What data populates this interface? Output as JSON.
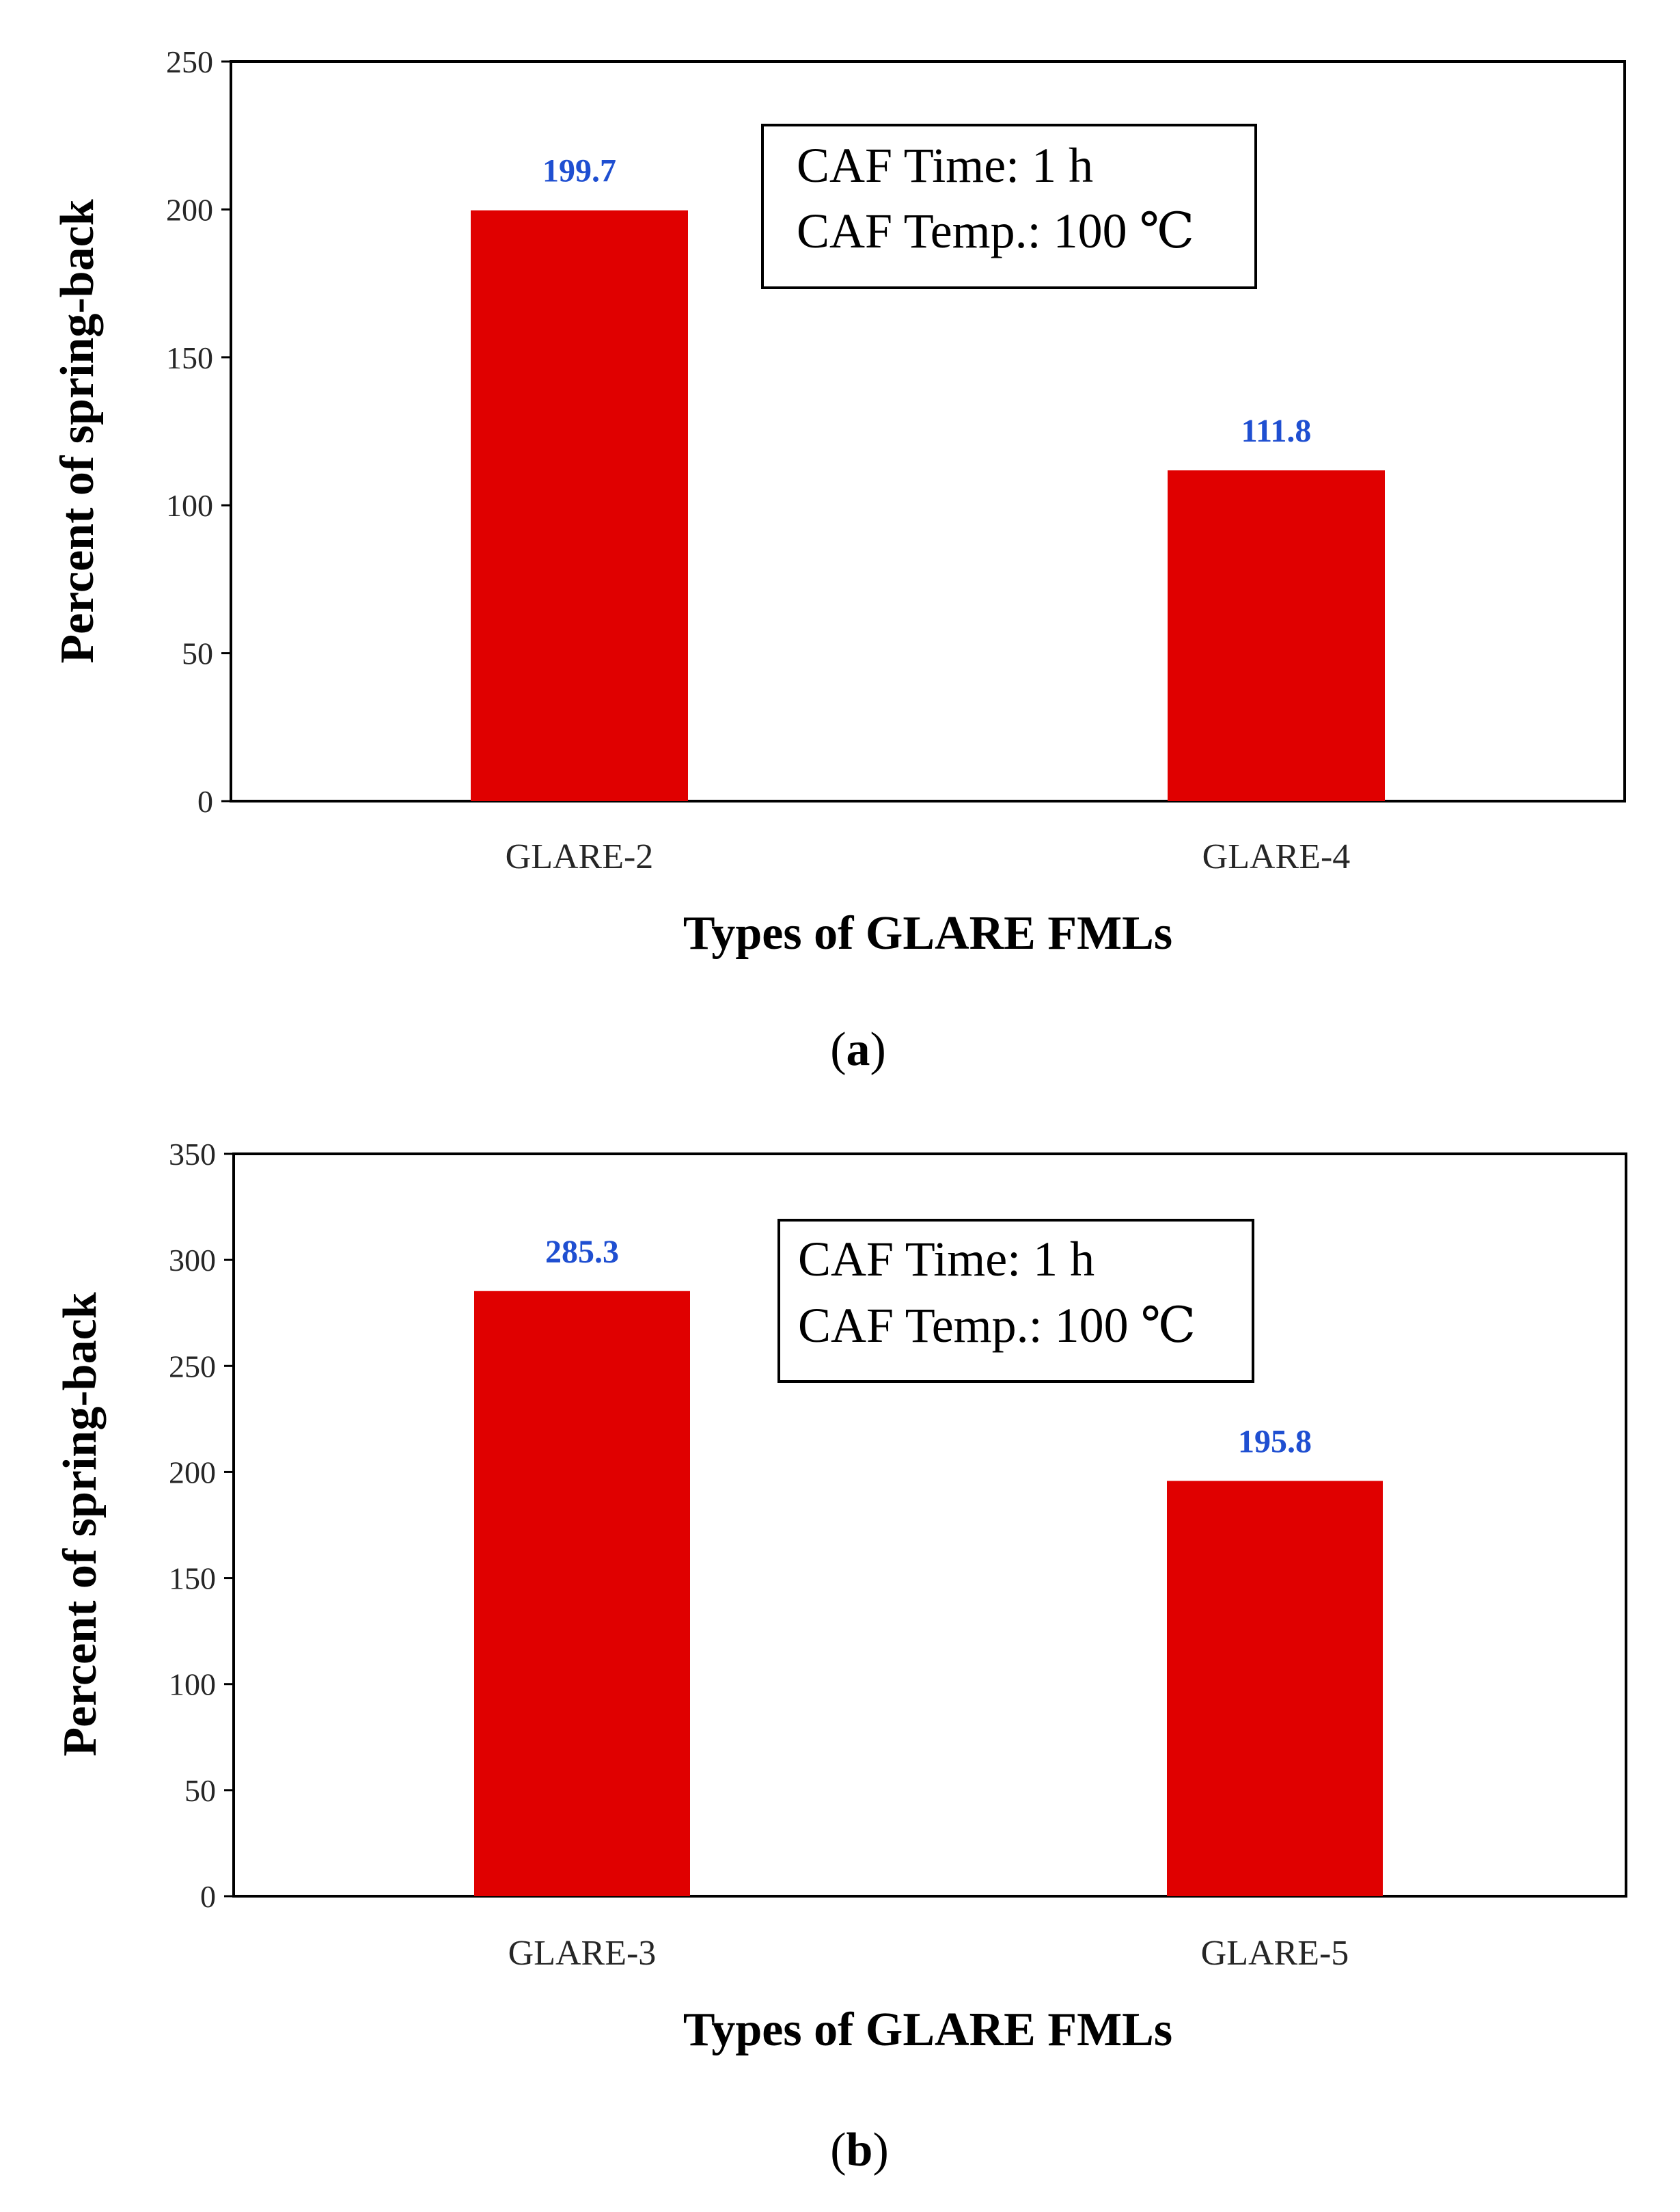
{
  "colors": {
    "bar": "#e00000",
    "data_label": "#1f4fd1",
    "axis": "#000000"
  },
  "chart_data": [
    {
      "type": "bar",
      "categories": [
        "GLARE-2",
        "GLARE-4"
      ],
      "values": [
        199.7,
        111.8
      ],
      "value_labels": [
        "199.7",
        "111.8"
      ],
      "xlabel": "Types of GLARE FMLs",
      "ylabel": "Percent of spring-back",
      "ylim": [
        0,
        250
      ],
      "yticks": [
        0,
        50,
        100,
        150,
        200,
        250
      ],
      "ytick_labels": [
        "0",
        "50",
        "100",
        "150",
        "200",
        "250"
      ],
      "annotation": {
        "line1": "CAF Time:  1 h",
        "line2": "CAF Temp.:  100 ℃"
      },
      "panel_label": {
        "open": "(",
        "letter": "a",
        "close": ")"
      },
      "grid": false
    },
    {
      "type": "bar",
      "categories": [
        "GLARE-3",
        "GLARE-5"
      ],
      "values": [
        285.3,
        195.8
      ],
      "value_labels": [
        "285.3",
        "195.8"
      ],
      "xlabel": "Types of GLARE FMLs",
      "ylabel": "Percent of spring-back",
      "ylim": [
        0,
        350
      ],
      "yticks": [
        0,
        50,
        100,
        150,
        200,
        250,
        300,
        350
      ],
      "ytick_labels": [
        "0",
        "50",
        "100",
        "150",
        "200",
        "250",
        "300",
        "350"
      ],
      "annotation": {
        "line1": "CAF Time:  1 h",
        "line2": "CAF Temp.:  100 ℃"
      },
      "panel_label": {
        "open": "(",
        "letter": "b",
        "close": ")"
      },
      "grid": false
    }
  ]
}
